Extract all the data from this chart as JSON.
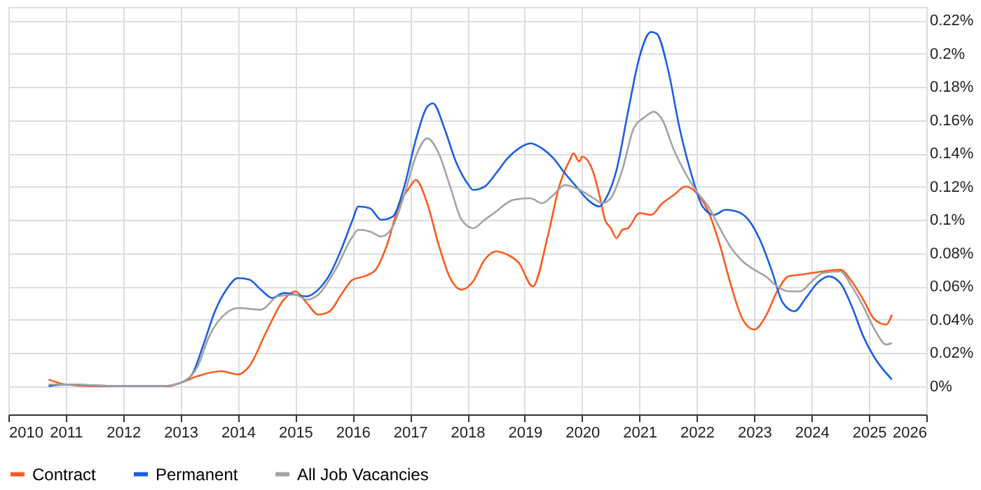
{
  "chart_data": {
    "type": "line",
    "legend": "bottom",
    "grid": true,
    "line_style": "solid",
    "marker": "none",
    "xlim": [
      2010,
      2026
    ],
    "xticks": [
      2010,
      2011,
      2012,
      2013,
      2014,
      2015,
      2016,
      2017,
      2018,
      2019,
      2020,
      2021,
      2022,
      2023,
      2024,
      2025,
      2026
    ],
    "ylim": [
      -0.017,
      0.228
    ],
    "yticks": [
      {
        "value": 0,
        "label": "0%"
      },
      {
        "value": 0.02,
        "label": "0.02%"
      },
      {
        "value": 0.04,
        "label": "0.04%"
      },
      {
        "value": 0.06,
        "label": "0.06%"
      },
      {
        "value": 0.08,
        "label": "0.08%"
      },
      {
        "value": 0.1,
        "label": "0.1%"
      },
      {
        "value": 0.12,
        "label": "0.12%"
      },
      {
        "value": 0.14,
        "label": "0.14%"
      },
      {
        "value": 0.16,
        "label": "0.16%"
      },
      {
        "value": 0.18,
        "label": "0.18%"
      },
      {
        "value": 0.2,
        "label": "0.2%"
      },
      {
        "value": 0.22,
        "label": "0.22%"
      }
    ],
    "series": [
      {
        "name": "Contract",
        "color": "#fc5a1d",
        "x": [
          2010.7,
          2011,
          2011.5,
          2012,
          2012.5,
          2012.8,
          2013,
          2013.3,
          2013.7,
          2014,
          2014.2,
          2014.5,
          2014.8,
          2015,
          2015.2,
          2015.4,
          2015.6,
          2015.8,
          2016,
          2016.2,
          2016.4,
          2016.6,
          2016.8,
          2017,
          2017.1,
          2017.3,
          2017.5,
          2017.7,
          2017.9,
          2018.1,
          2018.3,
          2018.5,
          2018.7,
          2018.9,
          2019.14,
          2019.4,
          2019.6,
          2019.8,
          2019.85,
          2019.95,
          2020,
          2020.2,
          2020.3,
          2020.4,
          2020.5,
          2020.6,
          2020.7,
          2020.8,
          2021,
          2021.2,
          2021.4,
          2021.6,
          2021.8,
          2022,
          2022.2,
          2022.4,
          2022.6,
          2022.8,
          2023,
          2023.2,
          2023.4,
          2023.6,
          2023.8,
          2024,
          2024.2,
          2024.5,
          2024.7,
          2024.9,
          2025.1,
          2025.3,
          2025.4
        ],
        "values": [
          0.004,
          0.001,
          0.0,
          0.0,
          0.0,
          0.0,
          0.002,
          0.006,
          0.009,
          0.007,
          0.012,
          0.033,
          0.052,
          0.057,
          0.05,
          0.043,
          0.045,
          0.055,
          0.064,
          0.066,
          0.07,
          0.085,
          0.108,
          0.12,
          0.124,
          0.11,
          0.085,
          0.065,
          0.058,
          0.063,
          0.076,
          0.081,
          0.079,
          0.074,
          0.06,
          0.09,
          0.12,
          0.137,
          0.14,
          0.135,
          0.138,
          0.128,
          0.115,
          0.1,
          0.095,
          0.089,
          0.094,
          0.095,
          0.104,
          0.103,
          0.11,
          0.115,
          0.12,
          0.116,
          0.105,
          0.085,
          0.06,
          0.04,
          0.034,
          0.042,
          0.057,
          0.066,
          0.067,
          0.068,
          0.069,
          0.07,
          0.063,
          0.052,
          0.04,
          0.037,
          0.043
        ]
      },
      {
        "name": "Permanent",
        "color": "#1a5fe0",
        "x": [
          2010.7,
          2011,
          2012,
          2012.7,
          2013,
          2013.2,
          2013.4,
          2013.6,
          2013.8,
          2014,
          2014.2,
          2014.4,
          2014.6,
          2014.8,
          2015,
          2015.2,
          2015.4,
          2015.6,
          2015.8,
          2016,
          2016.1,
          2016.3,
          2016.5,
          2016.7,
          2016.9,
          2017.1,
          2017.3,
          2017.4,
          2017.6,
          2017.8,
          2018,
          2018.1,
          2018.3,
          2018.5,
          2018.7,
          2018.9,
          2019.1,
          2019.3,
          2019.5,
          2019.7,
          2019.9,
          2020.1,
          2020.3,
          2020.4,
          2020.6,
          2020.8,
          2021,
          2021.2,
          2021.3,
          2021.5,
          2021.7,
          2021.9,
          2022.1,
          2022.3,
          2022.5,
          2022.7,
          2022.9,
          2023.1,
          2023.3,
          2023.5,
          2023.7,
          2023.9,
          2024.1,
          2024.3,
          2024.5,
          2024.7,
          2024.9,
          2025.1,
          2025.4
        ],
        "values": [
          0.0,
          0.001,
          0.0,
          0.0,
          0.002,
          0.007,
          0.025,
          0.045,
          0.058,
          0.065,
          0.064,
          0.058,
          0.053,
          0.056,
          0.055,
          0.054,
          0.058,
          0.067,
          0.082,
          0.1,
          0.108,
          0.107,
          0.1,
          0.102,
          0.12,
          0.148,
          0.168,
          0.17,
          0.155,
          0.135,
          0.122,
          0.118,
          0.12,
          0.128,
          0.137,
          0.143,
          0.146,
          0.143,
          0.137,
          0.128,
          0.12,
          0.112,
          0.108,
          0.112,
          0.13,
          0.165,
          0.198,
          0.213,
          0.212,
          0.19,
          0.155,
          0.128,
          0.108,
          0.103,
          0.106,
          0.105,
          0.1,
          0.088,
          0.07,
          0.05,
          0.045,
          0.053,
          0.062,
          0.066,
          0.062,
          0.048,
          0.03,
          0.017,
          0.004
        ]
      },
      {
        "name": "All Job Vacancies",
        "color": "#a3a3a3",
        "x": [
          2010.7,
          2011,
          2012,
          2012.7,
          2013,
          2013.3,
          2013.5,
          2013.8,
          2014,
          2014.4,
          2014.7,
          2015,
          2015.2,
          2015.4,
          2015.7,
          2016,
          2016.1,
          2016.3,
          2016.5,
          2016.7,
          2016.9,
          2017.1,
          2017.3,
          2017.5,
          2017.7,
          2017.9,
          2018.1,
          2018.3,
          2018.5,
          2018.8,
          2019.1,
          2019.3,
          2019.5,
          2019.7,
          2019.9,
          2020.2,
          2020.35,
          2020.5,
          2020.7,
          2020.9,
          2021.1,
          2021.25,
          2021.4,
          2021.6,
          2021.8,
          2022,
          2022.2,
          2022.4,
          2022.6,
          2022.8,
          2023,
          2023.2,
          2023.4,
          2023.6,
          2023.8,
          2024,
          2024.2,
          2024.5,
          2024.7,
          2024.9,
          2025.1,
          2025.3,
          2025.4
        ],
        "values": [
          0.001,
          0.001,
          0.0,
          0.0,
          0.002,
          0.012,
          0.03,
          0.044,
          0.047,
          0.046,
          0.054,
          0.055,
          0.052,
          0.055,
          0.07,
          0.09,
          0.094,
          0.093,
          0.09,
          0.096,
          0.115,
          0.138,
          0.149,
          0.14,
          0.12,
          0.1,
          0.095,
          0.1,
          0.105,
          0.112,
          0.113,
          0.11,
          0.115,
          0.121,
          0.119,
          0.113,
          0.11,
          0.113,
          0.13,
          0.155,
          0.162,
          0.165,
          0.16,
          0.142,
          0.128,
          0.117,
          0.108,
          0.095,
          0.083,
          0.075,
          0.07,
          0.066,
          0.06,
          0.057,
          0.057,
          0.063,
          0.068,
          0.069,
          0.06,
          0.048,
          0.034,
          0.025,
          0.026
        ]
      }
    ]
  }
}
